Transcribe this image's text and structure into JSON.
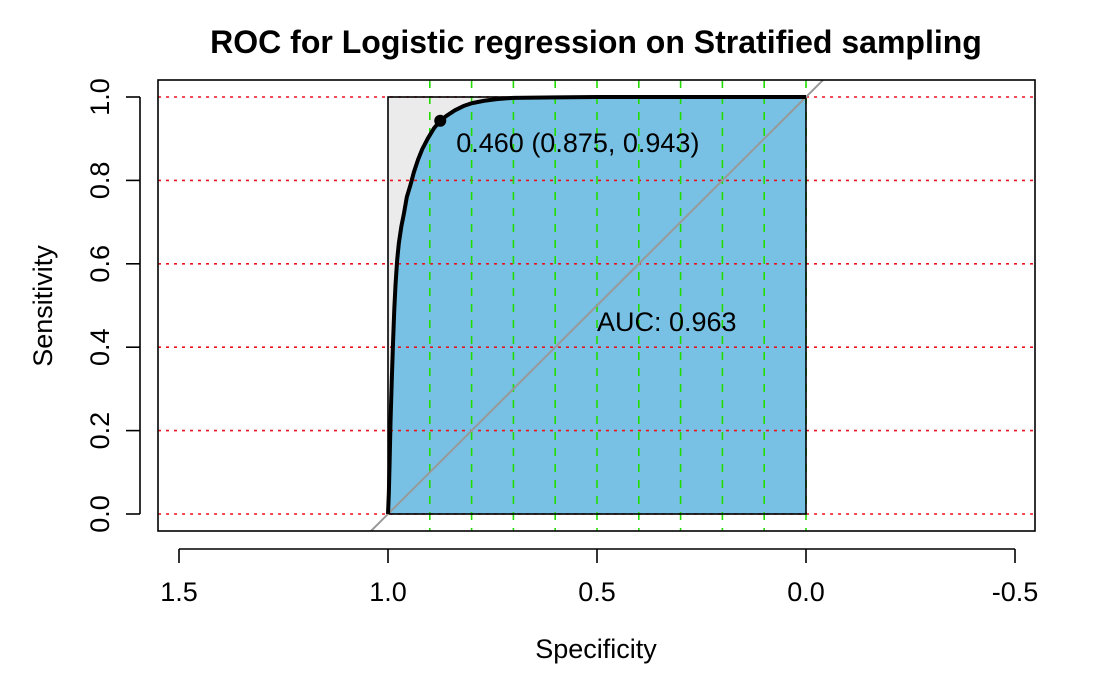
{
  "chart_data": {
    "type": "line",
    "title": "ROC for Logistic regression on Stratified sampling",
    "xlabel": "Specificity",
    "ylabel": "Sensitivity",
    "x_reversed": true,
    "xlim": [
      1.5,
      -0.5
    ],
    "ylim": [
      0.0,
      1.0
    ],
    "x_ticks": [
      {
        "value": 1.5,
        "label": "1.5"
      },
      {
        "value": 1.0,
        "label": "1.0"
      },
      {
        "value": 0.5,
        "label": "0.5"
      },
      {
        "value": 0.0,
        "label": "0.0"
      },
      {
        "value": -0.5,
        "label": "-0.5"
      }
    ],
    "y_ticks": [
      {
        "value": 0.0,
        "label": "0.0"
      },
      {
        "value": 0.2,
        "label": "0.2"
      },
      {
        "value": 0.4,
        "label": "0.4"
      },
      {
        "value": 0.6,
        "label": "0.6"
      },
      {
        "value": 0.8,
        "label": "0.8"
      },
      {
        "value": 1.0,
        "label": "1.0"
      }
    ],
    "grid": {
      "horizontal": {
        "values": [
          0.0,
          0.2,
          0.4,
          0.6,
          0.8,
          1.0
        ],
        "color": "#e8141d",
        "style": "dotted"
      },
      "vertical": {
        "values": [
          0.9,
          0.8,
          0.7,
          0.6,
          0.5,
          0.4,
          0.3,
          0.2,
          0.1,
          0.0
        ],
        "color": "#22dd00",
        "style": "dashed"
      }
    },
    "series": [
      {
        "color": "#000000",
        "fill_color": "#78c1e4",
        "points": [
          [
            1.0,
            0.0
          ],
          [
            0.998,
            0.05
          ],
          [
            0.996,
            0.13
          ],
          [
            0.994,
            0.22
          ],
          [
            0.991,
            0.32
          ],
          [
            0.988,
            0.41
          ],
          [
            0.985,
            0.49
          ],
          [
            0.982,
            0.55
          ],
          [
            0.978,
            0.61
          ],
          [
            0.974,
            0.65
          ],
          [
            0.968,
            0.69
          ],
          [
            0.962,
            0.72
          ],
          [
            0.955,
            0.76
          ],
          [
            0.946,
            0.79
          ],
          [
            0.938,
            0.82
          ],
          [
            0.928,
            0.85
          ],
          [
            0.918,
            0.875
          ],
          [
            0.905,
            0.9
          ],
          [
            0.89,
            0.925
          ],
          [
            0.875,
            0.943
          ],
          [
            0.86,
            0.955
          ],
          [
            0.84,
            0.968
          ],
          [
            0.82,
            0.978
          ],
          [
            0.8,
            0.985
          ],
          [
            0.77,
            0.991
          ],
          [
            0.74,
            0.995
          ],
          [
            0.7,
            0.998
          ],
          [
            0.6,
            0.999
          ],
          [
            0.5,
            1.0
          ],
          [
            0.0,
            1.0
          ]
        ]
      }
    ],
    "diagonal": {
      "color": "#999999",
      "from": [
        1.05,
        -0.05
      ],
      "to": [
        -0.05,
        1.05
      ]
    },
    "max_area_box": {
      "fill": "#ebebeb",
      "x": [
        1.0,
        0.0
      ],
      "y": [
        0.0,
        1.0
      ]
    },
    "threshold_point": {
      "x": 0.875,
      "y": 0.943,
      "label": "0.460 (0.875, 0.943)"
    },
    "auc_label": "AUC: 0.963",
    "auc_label_position": {
      "x": 0.5,
      "y": 0.463
    }
  }
}
